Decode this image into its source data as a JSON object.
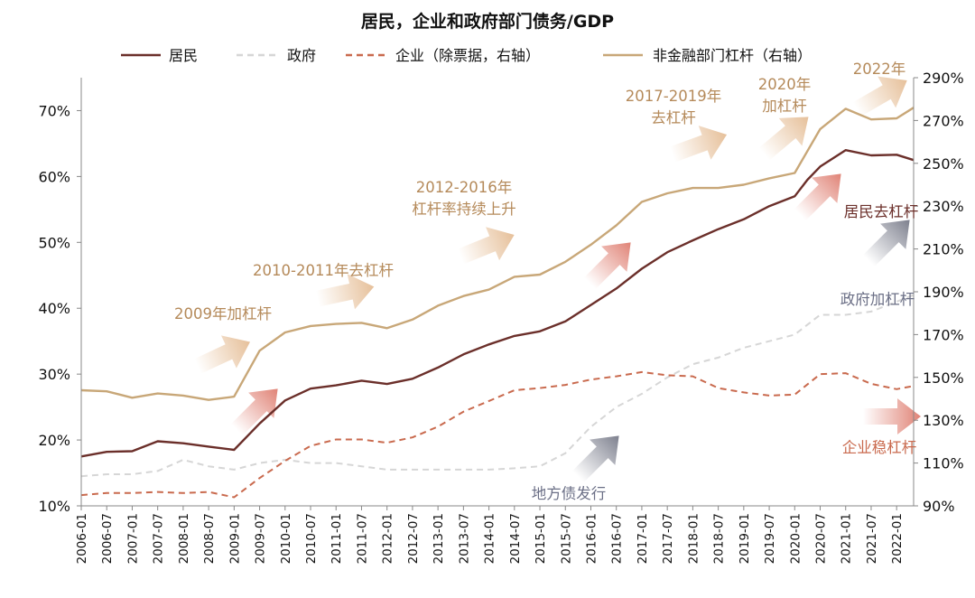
{
  "chart_data": {
    "type": "line",
    "title": "居民，企业和政府部门债务/GDP",
    "x_labels": [
      "2006-01",
      "2006-07",
      "2007-01",
      "2007-07",
      "2008-01",
      "2008-07",
      "2009-01",
      "2009-07",
      "2010-01",
      "2010-07",
      "2011-01",
      "2011-07",
      "2012-01",
      "2012-07",
      "2013-01",
      "2013-07",
      "2014-01",
      "2014-07",
      "2015-01",
      "2015-07",
      "2016-01",
      "2016-07",
      "2017-01",
      "2017-07",
      "2018-01",
      "2018-07",
      "2019-01",
      "2019-07",
      "2020-01",
      "2020-07",
      "2021-01",
      "2021-07",
      "2022-01"
    ],
    "x_end": "2022-05",
    "y_left": {
      "min": 10,
      "max": 75,
      "ticks": [
        "10%",
        "20%",
        "30%",
        "40%",
        "50%",
        "60%",
        "70%"
      ],
      "tick_values": [
        10,
        20,
        30,
        40,
        50,
        60,
        70
      ]
    },
    "y_right": {
      "min": 90,
      "max": 290,
      "ticks": [
        "90%",
        "110%",
        "130%",
        "150%",
        "170%",
        "190%",
        "210%",
        "230%",
        "250%",
        "270%",
        "290%"
      ],
      "tick_values": [
        90,
        110,
        130,
        150,
        170,
        190,
        210,
        230,
        250,
        270,
        290
      ]
    },
    "grid": false,
    "legend_position": "top",
    "series": [
      {
        "name": "居民",
        "axis": "left",
        "color": "#6b2f2a",
        "style": "solid",
        "points": [
          [
            "2006-01",
            17.5
          ],
          [
            "2006-07",
            18.2
          ],
          [
            "2007-01",
            18.3
          ],
          [
            "2007-07",
            19.8
          ],
          [
            "2008-01",
            19.5
          ],
          [
            "2008-07",
            19.0
          ],
          [
            "2009-01",
            18.5
          ],
          [
            "2009-07",
            22.5
          ],
          [
            "2010-01",
            26.0
          ],
          [
            "2010-07",
            27.8
          ],
          [
            "2011-01",
            28.3
          ],
          [
            "2011-07",
            29.0
          ],
          [
            "2012-01",
            28.5
          ],
          [
            "2012-07",
            29.3
          ],
          [
            "2013-01",
            31.0
          ],
          [
            "2013-07",
            33.0
          ],
          [
            "2014-01",
            34.5
          ],
          [
            "2014-07",
            35.8
          ],
          [
            "2015-01",
            36.5
          ],
          [
            "2015-07",
            38.0
          ],
          [
            "2016-01",
            40.5
          ],
          [
            "2016-07",
            43.0
          ],
          [
            "2017-01",
            46.0
          ],
          [
            "2017-07",
            48.5
          ],
          [
            "2018-01",
            50.3
          ],
          [
            "2018-07",
            52.0
          ],
          [
            "2019-01",
            53.5
          ],
          [
            "2019-07",
            55.5
          ],
          [
            "2020-01",
            57.0
          ],
          [
            "2020-04",
            59.5
          ],
          [
            "2020-07",
            61.5
          ],
          [
            "2021-01",
            64.0
          ],
          [
            "2021-07",
            63.2
          ],
          [
            "2022-01",
            63.3
          ],
          [
            "2022-05",
            62.5
          ]
        ]
      },
      {
        "name": "政府",
        "axis": "left",
        "color": "#d6d6d6",
        "style": "dashed",
        "points": [
          [
            "2006-01",
            14.5
          ],
          [
            "2006-07",
            14.8
          ],
          [
            "2007-01",
            14.8
          ],
          [
            "2007-07",
            15.3
          ],
          [
            "2008-01",
            17.0
          ],
          [
            "2008-07",
            16.0
          ],
          [
            "2009-01",
            15.5
          ],
          [
            "2009-07",
            16.5
          ],
          [
            "2010-01",
            17.0
          ],
          [
            "2010-07",
            16.5
          ],
          [
            "2011-01",
            16.5
          ],
          [
            "2011-07",
            16.0
          ],
          [
            "2012-01",
            15.5
          ],
          [
            "2012-07",
            15.5
          ],
          [
            "2013-01",
            15.5
          ],
          [
            "2013-07",
            15.5
          ],
          [
            "2014-01",
            15.5
          ],
          [
            "2014-07",
            15.7
          ],
          [
            "2015-01",
            16.0
          ],
          [
            "2015-07",
            18.0
          ],
          [
            "2016-01",
            22.0
          ],
          [
            "2016-07",
            25.0
          ],
          [
            "2017-01",
            27.0
          ],
          [
            "2017-07",
            29.5
          ],
          [
            "2018-01",
            31.5
          ],
          [
            "2018-07",
            32.5
          ],
          [
            "2019-01",
            34.0
          ],
          [
            "2019-07",
            35.0
          ],
          [
            "2020-01",
            36.0
          ],
          [
            "2020-07",
            39.0
          ],
          [
            "2021-01",
            39.0
          ],
          [
            "2021-07",
            39.5
          ],
          [
            "2022-01",
            41.0
          ],
          [
            "2022-05",
            42.0
          ]
        ]
      },
      {
        "name": "企业（除票据，右轴）",
        "axis": "right",
        "color": "#c96a4e",
        "style": "dashed",
        "points": [
          [
            "2006-01",
            95.0
          ],
          [
            "2006-07",
            96.0
          ],
          [
            "2007-01",
            96.0
          ],
          [
            "2007-07",
            96.5
          ],
          [
            "2008-01",
            96.0
          ],
          [
            "2008-07",
            96.5
          ],
          [
            "2009-01",
            94.0
          ],
          [
            "2009-07",
            103.0
          ],
          [
            "2010-01",
            111.0
          ],
          [
            "2010-07",
            118.0
          ],
          [
            "2011-01",
            121.0
          ],
          [
            "2011-07",
            121.0
          ],
          [
            "2012-01",
            119.5
          ],
          [
            "2012-07",
            122.0
          ],
          [
            "2013-01",
            127.0
          ],
          [
            "2013-07",
            134.0
          ],
          [
            "2014-01",
            139.0
          ],
          [
            "2014-07",
            144.0
          ],
          [
            "2015-01",
            145.0
          ],
          [
            "2015-07",
            146.5
          ],
          [
            "2016-01",
            149.0
          ],
          [
            "2016-07",
            150.5
          ],
          [
            "2017-01",
            152.5
          ],
          [
            "2017-07",
            151.0
          ],
          [
            "2018-01",
            150.5
          ],
          [
            "2018-07",
            145.0
          ],
          [
            "2019-01",
            143.0
          ],
          [
            "2019-07",
            141.5
          ],
          [
            "2020-01",
            142.0
          ],
          [
            "2020-07",
            151.5
          ],
          [
            "2021-01",
            152.0
          ],
          [
            "2021-07",
            147.0
          ],
          [
            "2022-01",
            144.5
          ],
          [
            "2022-05",
            146.0
          ]
        ]
      },
      {
        "name": "非金融部门杠杆（右轴）",
        "axis": "right",
        "color": "#c8a778",
        "style": "solid",
        "points": [
          [
            "2006-01",
            144.0
          ],
          [
            "2006-07",
            143.5
          ],
          [
            "2007-01",
            140.5
          ],
          [
            "2007-07",
            142.5
          ],
          [
            "2008-01",
            141.5
          ],
          [
            "2008-07",
            139.5
          ],
          [
            "2009-01",
            141.0
          ],
          [
            "2009-07",
            162.5
          ],
          [
            "2010-01",
            171.0
          ],
          [
            "2010-07",
            174.0
          ],
          [
            "2011-01",
            175.0
          ],
          [
            "2011-07",
            175.5
          ],
          [
            "2012-01",
            173.0
          ],
          [
            "2012-07",
            177.0
          ],
          [
            "2013-01",
            183.5
          ],
          [
            "2013-07",
            188.0
          ],
          [
            "2014-01",
            191.0
          ],
          [
            "2014-07",
            197.0
          ],
          [
            "2015-01",
            198.0
          ],
          [
            "2015-07",
            204.0
          ],
          [
            "2016-01",
            212.0
          ],
          [
            "2016-07",
            221.0
          ],
          [
            "2017-01",
            232.0
          ],
          [
            "2017-07",
            236.0
          ],
          [
            "2018-01",
            238.5
          ],
          [
            "2018-07",
            238.5
          ],
          [
            "2019-01",
            240.0
          ],
          [
            "2019-07",
            243.0
          ],
          [
            "2020-01",
            245.5
          ],
          [
            "2020-07",
            266.0
          ],
          [
            "2021-01",
            275.5
          ],
          [
            "2021-07",
            270.5
          ],
          [
            "2022-01",
            271.0
          ],
          [
            "2022-05",
            276.0
          ]
        ]
      }
    ],
    "annotations": [
      {
        "text": "2009年加杠杆",
        "color": "#b58a5a"
      },
      {
        "text": "2010-2011年去杠杆",
        "color": "#b58a5a"
      },
      {
        "text": "2012-2016年",
        "color": "#b58a5a"
      },
      {
        "text": "杠杆率持续上升",
        "color": "#b58a5a"
      },
      {
        "text": "2017-2019年",
        "color": "#b58a5a"
      },
      {
        "text": "去杠杆",
        "color": "#b58a5a"
      },
      {
        "text": "2020年",
        "color": "#b58a5a"
      },
      {
        "text": "加杠杆",
        "color": "#b58a5a"
      },
      {
        "text": "2022年",
        "color": "#b58a5a"
      },
      {
        "text": "居民去杠杆",
        "color": "#6b2f2a"
      },
      {
        "text": "政府加杠杆",
        "color": "#6b6f86"
      },
      {
        "text": "企业稳杠杆",
        "color": "#c96a4e"
      },
      {
        "text": "地方债发行",
        "color": "#6b6f86"
      }
    ],
    "arrows": [
      {
        "kind": "tan"
      },
      {
        "kind": "tan"
      },
      {
        "kind": "tan"
      },
      {
        "kind": "tan"
      },
      {
        "kind": "tan"
      },
      {
        "kind": "tan"
      },
      {
        "kind": "red"
      },
      {
        "kind": "red"
      },
      {
        "kind": "red"
      },
      {
        "kind": "red"
      },
      {
        "kind": "grey"
      },
      {
        "kind": "grey"
      }
    ]
  }
}
